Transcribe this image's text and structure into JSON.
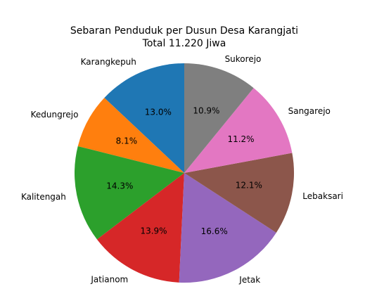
{
  "chart_data": {
    "type": "pie",
    "title": "Sebaran Penduduk per Dusun Desa Karangjati",
    "subtitle": "Total 11.220 Jiwa",
    "categories": [
      "Karangkepuh",
      "Kedungrejo",
      "Kalitengah",
      "Jatianom",
      "Jetak",
      "Lebaksari",
      "Sangarejo",
      "Sukorejo"
    ],
    "values": [
      13.0,
      8.1,
      14.3,
      13.9,
      16.6,
      12.1,
      11.2,
      10.9
    ],
    "value_labels": [
      "13.0%",
      "8.1%",
      "14.3%",
      "13.9%",
      "16.6%",
      "12.1%",
      "11.2%",
      "10.9%"
    ],
    "colors": [
      "#1f77b4",
      "#ff7f0e",
      "#2ca02c",
      "#d62728",
      "#9467bd",
      "#8c564b",
      "#e377c2",
      "#7f7f7f"
    ]
  }
}
